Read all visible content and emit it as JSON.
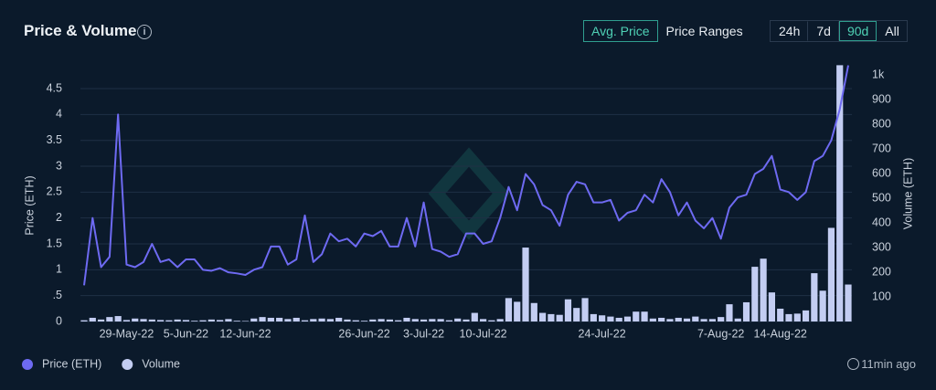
{
  "chart_data": {
    "type": "combo",
    "title": "Price & Volume",
    "y_label": "Price (ETH)",
    "y2_label": "Volume (ETH)",
    "categories": [
      null,
      null,
      null,
      null,
      null,
      "29-May-22",
      null,
      null,
      null,
      null,
      null,
      null,
      "5-Jun-22",
      null,
      null,
      null,
      null,
      null,
      null,
      "12-Jun-22",
      null,
      null,
      null,
      null,
      null,
      null,
      null,
      null,
      null,
      null,
      null,
      null,
      null,
      "26-Jun-22",
      null,
      null,
      null,
      null,
      null,
      null,
      "3-Jul-22",
      null,
      null,
      null,
      null,
      null,
      null,
      "10-Jul-22",
      null,
      null,
      null,
      null,
      null,
      null,
      null,
      null,
      null,
      null,
      null,
      null,
      null,
      "24-Jul-22",
      null,
      null,
      null,
      null,
      null,
      null,
      null,
      null,
      null,
      null,
      null,
      null,
      null,
      "7-Aug-22",
      null,
      null,
      null,
      null,
      null,
      null,
      "14-Aug-22",
      null,
      null,
      null,
      null,
      null,
      null,
      null,
      null
    ],
    "series": [
      {
        "name": "Price (ETH)",
        "type": "line",
        "color": "#6e6af2",
        "values": [
          0.7,
          2.0,
          1.05,
          1.25,
          4.0,
          1.1,
          1.05,
          1.15,
          1.5,
          1.15,
          1.2,
          1.05,
          1.2,
          1.2,
          1.0,
          0.98,
          1.03,
          0.95,
          0.93,
          0.9,
          1.0,
          1.05,
          1.45,
          1.45,
          1.1,
          1.2,
          2.05,
          1.15,
          1.3,
          1.7,
          1.55,
          1.6,
          1.45,
          1.7,
          1.65,
          1.75,
          1.45,
          1.45,
          2.0,
          1.45,
          2.3,
          1.4,
          1.35,
          1.25,
          1.3,
          1.7,
          1.7,
          1.5,
          1.55,
          2.0,
          2.6,
          2.15,
          2.85,
          2.65,
          2.25,
          2.15,
          1.85,
          2.45,
          2.7,
          2.65,
          2.3,
          2.3,
          2.35,
          1.95,
          2.1,
          2.15,
          2.45,
          2.3,
          2.75,
          2.5,
          2.05,
          2.3,
          1.95,
          1.8,
          2.0,
          1.6,
          2.2,
          2.4,
          2.45,
          2.85,
          2.95,
          3.2,
          2.55,
          2.5,
          2.35,
          2.5,
          3.1,
          3.2,
          3.5,
          4.1,
          4.95
        ]
      },
      {
        "name": "Volume",
        "type": "bar",
        "axis": "y2",
        "color": "#c3cdf2",
        "values": [
          5,
          15,
          8,
          18,
          22,
          6,
          12,
          10,
          8,
          6,
          5,
          8,
          6,
          3,
          5,
          8,
          6,
          10,
          3,
          2,
          12,
          18,
          15,
          15,
          10,
          15,
          5,
          10,
          12,
          10,
          15,
          8,
          5,
          3,
          8,
          10,
          8,
          5,
          15,
          10,
          8,
          10,
          10,
          5,
          12,
          8,
          35,
          10,
          5,
          10,
          95,
          80,
          300,
          75,
          35,
          30,
          27,
          90,
          55,
          95,
          30,
          25,
          20,
          15,
          20,
          40,
          40,
          12,
          15,
          10,
          15,
          12,
          20,
          10,
          10,
          18,
          70,
          12,
          78,
          222,
          255,
          118,
          52,
          30,
          32,
          45,
          196,
          125,
          380,
          1040,
          150
        ]
      }
    ],
    "ylim": [
      0,
      5
    ],
    "yticks": [
      0,
      {
        "value": 0.5,
        "label": ".5"
      },
      1,
      1.5,
      2,
      2.5,
      3,
      3.5,
      4,
      4.5
    ],
    "y2lim": [
      0,
      1050
    ],
    "y2ticks": [
      100,
      200,
      300,
      400,
      500,
      600,
      700,
      800,
      900,
      {
        "value": 1000,
        "label": "1k"
      }
    ],
    "grid": true,
    "legend": "bottom-left"
  },
  "controls": {
    "price_modes": [
      "Avg. Price",
      "Price Ranges"
    ],
    "active_price_mode": 0,
    "ranges": [
      "24h",
      "7d",
      "90d",
      "All"
    ],
    "active_range": 2
  },
  "updated": "11min ago"
}
